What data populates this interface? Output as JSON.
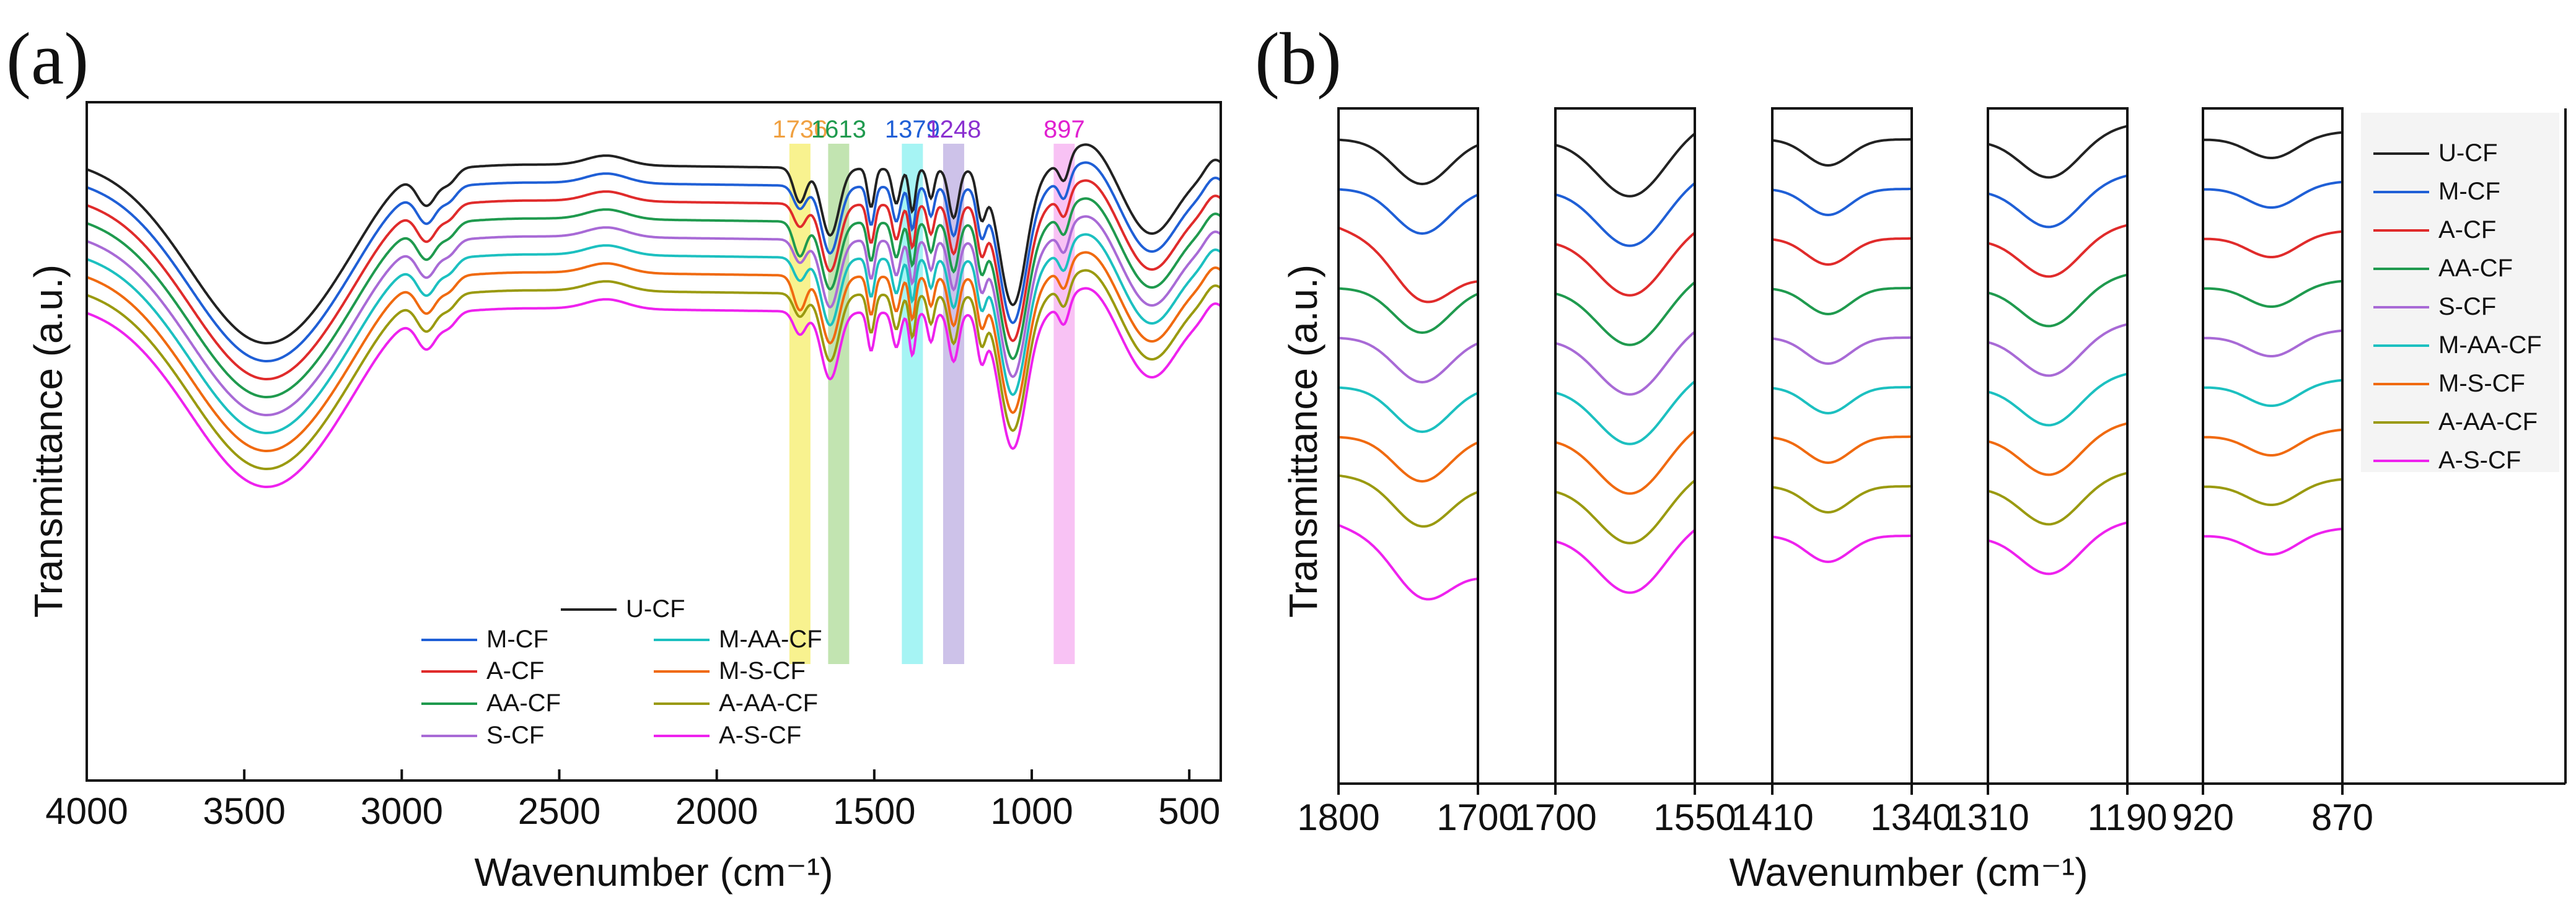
{
  "chart_data": [
    {
      "type": "line",
      "panel_label": "(a)",
      "title": "",
      "xlabel": "Wavenumber (cm⁻¹)",
      "ylabel": "Transmittance (a.u.)",
      "xlim": [
        4000,
        400
      ],
      "x_ticks": [
        4000,
        3500,
        3000,
        2500,
        2000,
        1500,
        1000,
        500
      ],
      "series": [
        {
          "name": "U-CF",
          "color": "#222222"
        },
        {
          "name": "M-CF",
          "color": "#1f5fd6"
        },
        {
          "name": "A-CF",
          "color": "#e02b2b"
        },
        {
          "name": "AA-CF",
          "color": "#1f9a4e"
        },
        {
          "name": "S-CF",
          "color": "#a86ad6"
        },
        {
          "name": "M-AA-CF",
          "color": "#1cc0c0"
        },
        {
          "name": "M-S-CF",
          "color": "#f06a10"
        },
        {
          "name": "A-AA-CF",
          "color": "#9a9a10"
        },
        {
          "name": "A-S-CF",
          "color": "#ee22ee"
        }
      ],
      "bands": [
        {
          "label": "1736",
          "wavenumber": 1736,
          "color": "#f5ec60",
          "label_color": "#f0a040"
        },
        {
          "label": "1613",
          "wavenumber": 1613,
          "color": "#a8d890",
          "label_color": "#1f9a4e"
        },
        {
          "label": "1379",
          "wavenumber": 1379,
          "color": "#80f0f0",
          "label_color": "#1f5fd6"
        },
        {
          "label": "1248",
          "wavenumber": 1248,
          "color": "#b8a8e0",
          "label_color": "#8a30d0"
        },
        {
          "label": "897",
          "wavenumber": 897,
          "color": "#f5a8f0",
          "label_color": "#e020d0"
        }
      ],
      "legend_position": "lower-center"
    },
    {
      "type": "line",
      "panel_label": "(b)",
      "xlabel": "Wavenumber (cm⁻¹)",
      "ylabel": "Transmittance (a.u.)",
      "segments": [
        {
          "xlim": [
            1800,
            1700
          ],
          "tick_labels": [
            "1800",
            "1700"
          ]
        },
        {
          "xlim": [
            1700,
            1550
          ],
          "tick_labels": [
            "1700",
            "1550"
          ]
        },
        {
          "xlim": [
            1410,
            1340
          ],
          "tick_labels": [
            "1410",
            "1340"
          ]
        },
        {
          "xlim": [
            1310,
            1190
          ],
          "tick_labels": [
            "1310",
            "1190"
          ]
        },
        {
          "xlim": [
            920,
            870
          ],
          "tick_labels": [
            "920",
            "870"
          ]
        }
      ],
      "series": [
        "U-CF",
        "M-CF",
        "A-CF",
        "AA-CF",
        "S-CF",
        "M-AA-CF",
        "M-S-CF",
        "A-AA-CF",
        "A-S-CF"
      ],
      "legend_position": "top-right"
    }
  ]
}
